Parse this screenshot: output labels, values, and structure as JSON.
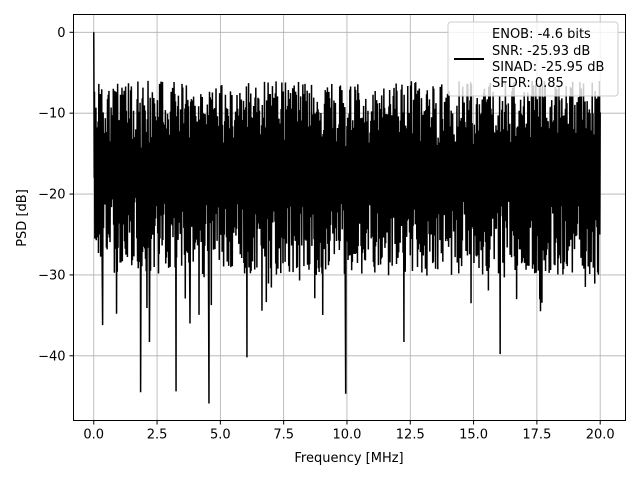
{
  "chart_data": {
    "type": "line",
    "title": "",
    "xlabel": "Frequency [MHz]",
    "ylabel": "PSD [dB]",
    "xlim": [
      -0.8,
      21.0
    ],
    "ylim": [
      -48,
      2.2
    ],
    "x_ticks": [
      0.0,
      2.5,
      5.0,
      7.5,
      10.0,
      12.5,
      15.0,
      17.5,
      20.0
    ],
    "x_tick_labels": [
      "0.0",
      "2.5",
      "5.0",
      "7.5",
      "10.0",
      "12.5",
      "15.0",
      "17.5",
      "20.0"
    ],
    "y_ticks": [
      0,
      -10,
      -20,
      -30,
      -40
    ],
    "y_tick_labels": [
      "0",
      "−10",
      "−20",
      "−30",
      "−40"
    ],
    "grid": true,
    "legend": {
      "placement": "top-right",
      "entries": [
        "ENOB: -4.6 bits",
        "SNR: -25.93 dB",
        "SINAD: -25.95 dB",
        "SFDR: 0.85"
      ]
    },
    "series": [
      {
        "color": "#000000",
        "x_range": [
          0.0,
          20.0
        ],
        "peak": {
          "x": 0.0,
          "y": 0.0
        },
        "envelope_top_dB": -6,
        "typical_floor_dB": -25,
        "deep_nulls": [
          {
            "x": 0.35,
            "y": -36.2
          },
          {
            "x": 0.9,
            "y": -34.8
          },
          {
            "x": 1.85,
            "y": -44.5
          },
          {
            "x": 2.2,
            "y": -38.3
          },
          {
            "x": 3.25,
            "y": -44.4
          },
          {
            "x": 3.8,
            "y": -36.0
          },
          {
            "x": 4.55,
            "y": -45.9
          },
          {
            "x": 6.05,
            "y": -40.2
          },
          {
            "x": 9.95,
            "y": -44.7
          },
          {
            "x": 12.25,
            "y": -38.3
          },
          {
            "x": 16.05,
            "y": -39.8
          }
        ]
      }
    ]
  }
}
